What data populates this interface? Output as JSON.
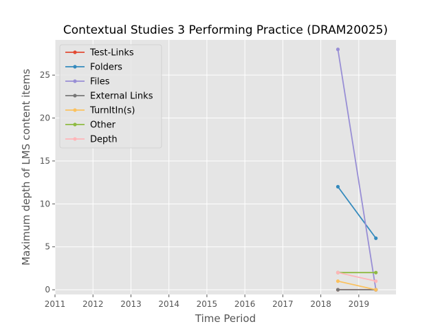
{
  "chart_data": {
    "type": "line",
    "title": "Contextual Studies 3 Performing Practice (DRAM20025)",
    "xlabel": "Time Period",
    "ylabel": "Maximum depth of LMS content items",
    "xlim": [
      2011.0,
      2019.98
    ],
    "ylim": [
      -0.55,
      29.1
    ],
    "x_ticks": [
      2011,
      2012,
      2013,
      2014,
      2015,
      2016,
      2017,
      2018,
      2019
    ],
    "x_tick_labels": [
      "2011",
      "2012",
      "2013",
      "2014",
      "2015",
      "2016",
      "2017",
      "2018",
      "2019"
    ],
    "y_ticks": [
      0,
      5,
      10,
      15,
      20,
      25
    ],
    "y_tick_labels": [
      "0",
      "5",
      "10",
      "15",
      "20",
      "25"
    ],
    "grid": true,
    "legend_position": "top-left",
    "x": [
      2018.45,
      2019.45
    ],
    "series": [
      {
        "name": "Test-Links",
        "color": "#E24A33",
        "values": [
          0,
          0
        ]
      },
      {
        "name": "Folders",
        "color": "#348ABD",
        "values": [
          12,
          6
        ]
      },
      {
        "name": "Files",
        "color": "#988ED5",
        "values": [
          28,
          0
        ]
      },
      {
        "name": "External Links",
        "color": "#777777",
        "values": [
          0,
          0
        ]
      },
      {
        "name": "TurnItIn(s)",
        "color": "#FBC15E",
        "values": [
          1,
          0
        ]
      },
      {
        "name": "Other",
        "color": "#8EBA42",
        "values": [
          2,
          2
        ]
      },
      {
        "name": "Depth",
        "color": "#FFB5B8",
        "values": [
          2,
          1
        ]
      }
    ]
  }
}
